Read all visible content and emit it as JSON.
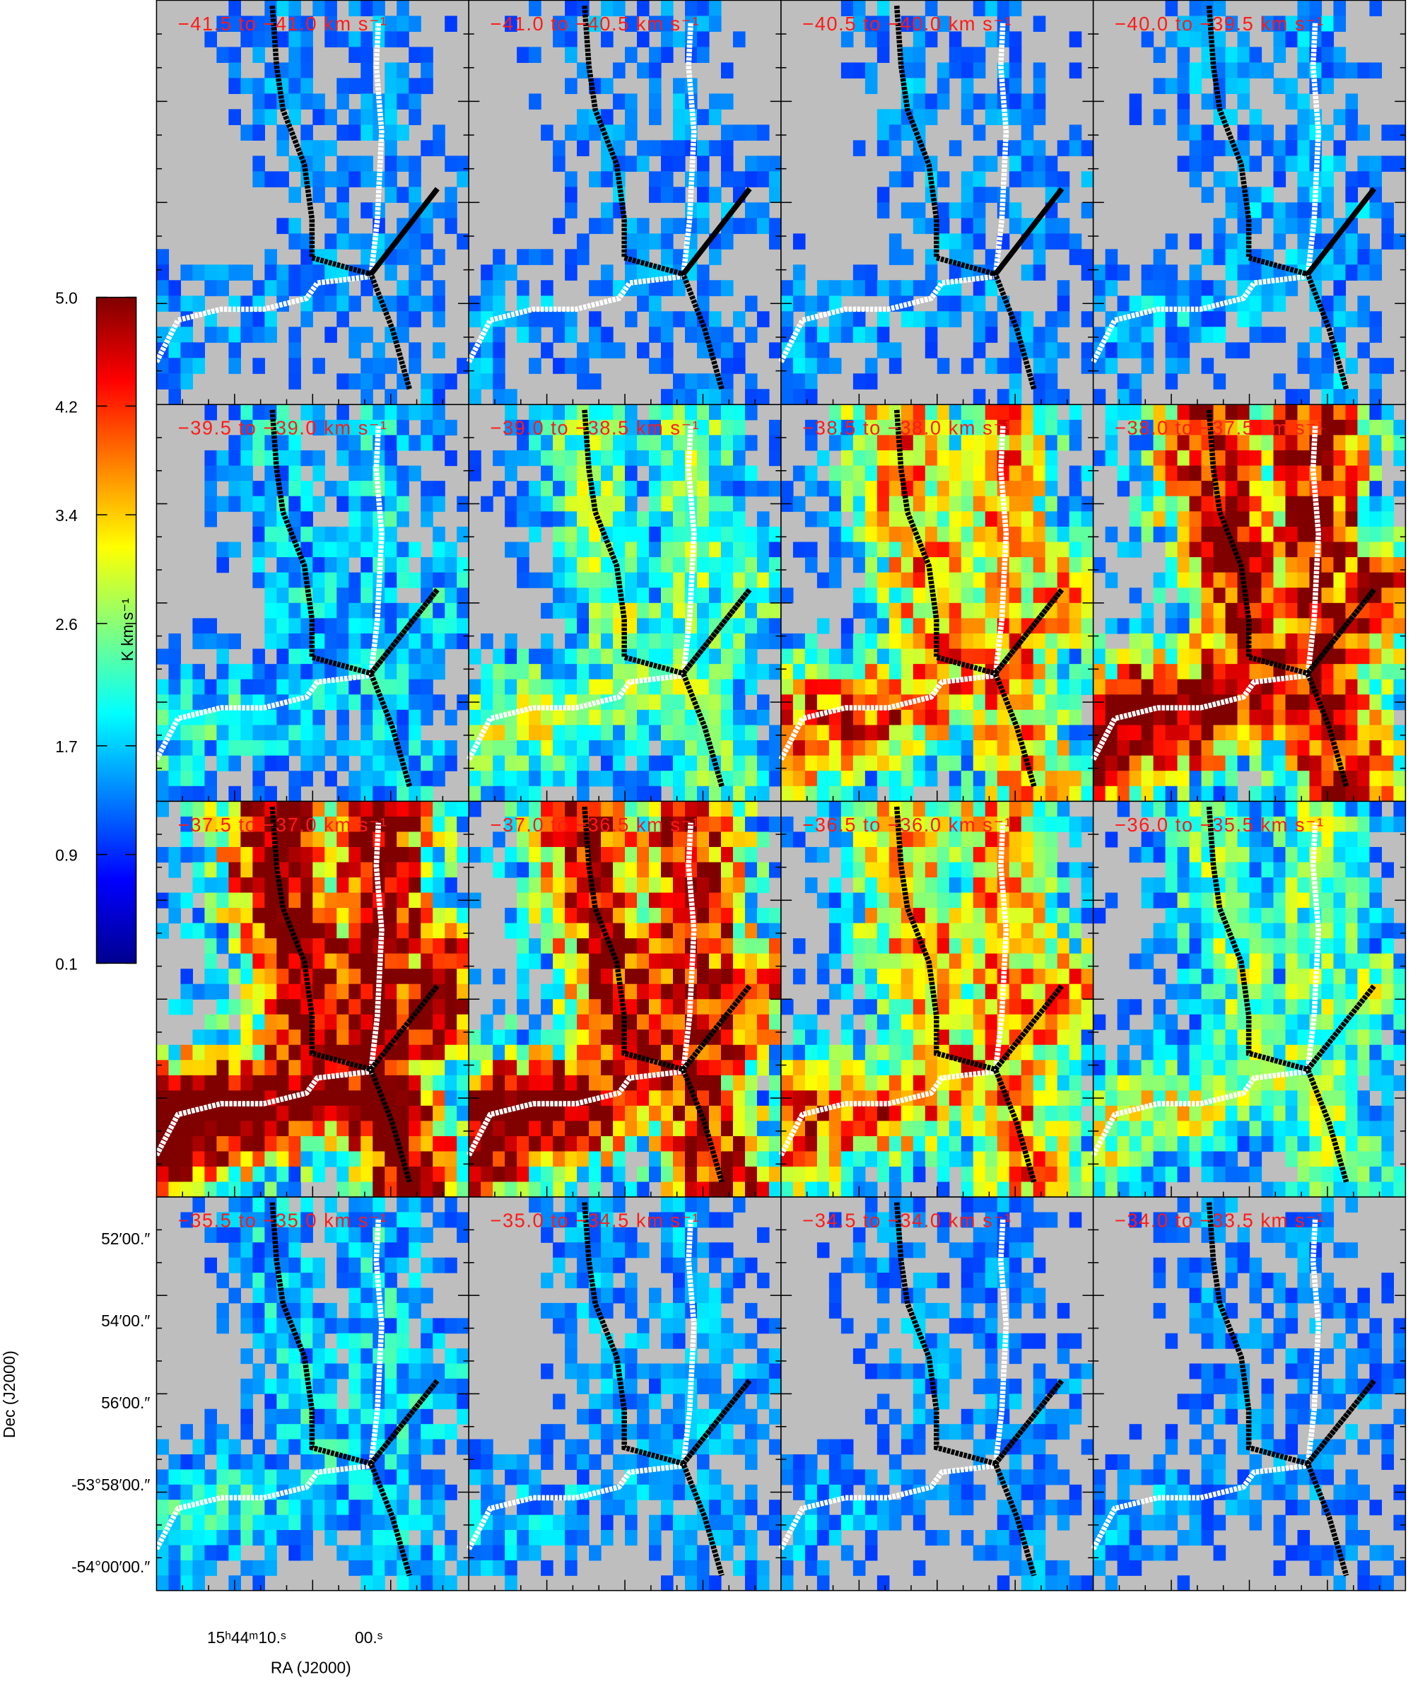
{
  "figure": {
    "panels": [
      "−41.5 to −41.0 km s⁻¹",
      "−41.0 to −40.5 km s⁻¹",
      "−40.5 to −40.0 km s⁻¹",
      "−40.0 to −39.5 km s⁻¹",
      "−39.5 to −39.0 km s⁻¹",
      "−39.0 to −38.5 km s⁻¹",
      "−38.5 to −38.0 km s⁻¹",
      "−38.0 to −37.5 km s⁻¹",
      "−37.5 to −37.0 km s⁻¹",
      "−37.0 to −36.5 km s⁻¹",
      "−36.5 to −36.0 km s⁻¹",
      "−36.0 to −35.5 km s⁻¹",
      "−35.5 to −35.0 km s⁻¹",
      "−35.0 to −34.5 km s⁻¹",
      "−34.5 to −34.0 km s⁻¹",
      "−34.0 to −33.5 km s⁻¹"
    ],
    "colorbar": {
      "label": "K km s⁻¹",
      "lim": [
        0.1,
        5.0
      ],
      "ticks": [
        {
          "value": 5,
          "label": "5.0"
        },
        4.2,
        3.4,
        2.6,
        1.7,
        0.9,
        0.1
      ]
    },
    "dec_axis": {
      "label": "Dec (J2000)",
      "ticks": [
        "52′00.″",
        "54′00.″",
        "56′00.″",
        "-53°58′00.″",
        "-54°00′00.″"
      ]
    },
    "ra_axis": {
      "label": "RA (J2000)",
      "ticks": [
        "15ʰ44ᵐ10.ˢ",
        "00.ˢ"
      ]
    }
  }
}
